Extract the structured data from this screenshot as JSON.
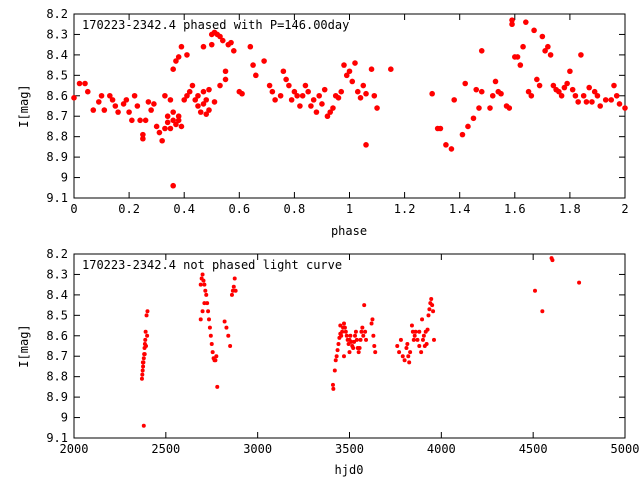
{
  "colors": {
    "series": "#ff0000",
    "axes": "#000000",
    "background": "#ffffff"
  },
  "chart_data": [
    {
      "type": "scatter",
      "title": "170223-2342.4 phased with P=146.00day",
      "xlabel": "phase",
      "ylabel": "I[mag]",
      "xlim": [
        0,
        2
      ],
      "ylim": [
        8.2,
        9.1
      ],
      "y_inverted": true,
      "x_ticks": [
        "0",
        "0.2",
        "0.4",
        "0.6",
        "0.8",
        "1",
        "1.2",
        "1.4",
        "1.6",
        "1.8",
        "2"
      ],
      "y_ticks": [
        "8.2",
        "8.3",
        "8.4",
        "8.5",
        "8.6",
        "8.7",
        "8.8",
        "8.9",
        "9",
        "9.1"
      ],
      "grid": false,
      "marker": "filled-circle",
      "points": [
        [
          0.0,
          8.61
        ],
        [
          0.02,
          8.54
        ],
        [
          0.04,
          8.54
        ],
        [
          0.05,
          8.58
        ],
        [
          0.07,
          8.67
        ],
        [
          0.09,
          8.63
        ],
        [
          0.1,
          8.6
        ],
        [
          0.11,
          8.67
        ],
        [
          0.13,
          8.6
        ],
        [
          0.14,
          8.62
        ],
        [
          0.15,
          8.65
        ],
        [
          0.16,
          8.68
        ],
        [
          0.18,
          8.64
        ],
        [
          0.19,
          8.62
        ],
        [
          0.2,
          8.68
        ],
        [
          0.21,
          8.72
        ],
        [
          0.22,
          8.6
        ],
        [
          0.23,
          8.65
        ],
        [
          0.24,
          8.72
        ],
        [
          0.25,
          8.79
        ],
        [
          0.25,
          8.81
        ],
        [
          0.26,
          8.72
        ],
        [
          0.27,
          8.63
        ],
        [
          0.28,
          8.67
        ],
        [
          0.29,
          8.64
        ],
        [
          0.3,
          8.75
        ],
        [
          0.31,
          8.78
        ],
        [
          0.32,
          8.82
        ],
        [
          0.33,
          8.76
        ],
        [
          0.34,
          8.7
        ],
        [
          0.34,
          8.73
        ],
        [
          0.35,
          8.76
        ],
        [
          0.36,
          8.72
        ],
        [
          0.36,
          8.68
        ],
        [
          0.37,
          8.74
        ],
        [
          0.38,
          8.7
        ],
        [
          0.38,
          8.72
        ],
        [
          0.39,
          8.75
        ],
        [
          0.33,
          8.6
        ],
        [
          0.35,
          8.62
        ],
        [
          0.36,
          9.04
        ],
        [
          0.36,
          8.47
        ],
        [
          0.37,
          8.43
        ],
        [
          0.38,
          8.41
        ],
        [
          0.39,
          8.36
        ],
        [
          0.4,
          8.62
        ],
        [
          0.41,
          8.6
        ],
        [
          0.41,
          8.4
        ],
        [
          0.42,
          8.58
        ],
        [
          0.43,
          8.55
        ],
        [
          0.44,
          8.62
        ],
        [
          0.45,
          8.65
        ],
        [
          0.45,
          8.6
        ],
        [
          0.46,
          8.68
        ],
        [
          0.47,
          8.64
        ],
        [
          0.47,
          8.58
        ],
        [
          0.47,
          8.36
        ],
        [
          0.48,
          8.62
        ],
        [
          0.48,
          8.69
        ],
        [
          0.49,
          8.67
        ],
        [
          0.49,
          8.57
        ],
        [
          0.5,
          8.3
        ],
        [
          0.5,
          8.35
        ],
        [
          0.51,
          8.63
        ],
        [
          0.51,
          8.29
        ],
        [
          0.52,
          8.3
        ],
        [
          0.53,
          8.31
        ],
        [
          0.53,
          8.55
        ],
        [
          0.54,
          8.33
        ],
        [
          0.55,
          8.52
        ],
        [
          0.55,
          8.48
        ],
        [
          0.56,
          8.35
        ],
        [
          0.57,
          8.34
        ],
        [
          0.58,
          8.38
        ],
        [
          0.6,
          8.58
        ],
        [
          0.61,
          8.59
        ],
        [
          0.64,
          8.36
        ],
        [
          0.65,
          8.45
        ],
        [
          0.66,
          8.5
        ],
        [
          0.69,
          8.43
        ],
        [
          0.71,
          8.55
        ],
        [
          0.72,
          8.58
        ],
        [
          0.73,
          8.62
        ],
        [
          0.75,
          8.6
        ],
        [
          0.76,
          8.48
        ],
        [
          0.77,
          8.52
        ],
        [
          0.78,
          8.55
        ],
        [
          0.79,
          8.62
        ],
        [
          0.8,
          8.58
        ],
        [
          0.81,
          8.6
        ],
        [
          0.82,
          8.65
        ],
        [
          0.83,
          8.6
        ],
        [
          0.84,
          8.55
        ],
        [
          0.85,
          8.58
        ],
        [
          0.86,
          8.65
        ],
        [
          0.87,
          8.62
        ],
        [
          0.88,
          8.68
        ],
        [
          0.89,
          8.6
        ],
        [
          0.9,
          8.64
        ],
        [
          0.91,
          8.57
        ],
        [
          0.92,
          8.7
        ],
        [
          0.93,
          8.68
        ],
        [
          0.94,
          8.66
        ],
        [
          0.95,
          8.6
        ],
        [
          0.96,
          8.61
        ],
        [
          0.97,
          8.58
        ],
        [
          0.98,
          8.45
        ],
        [
          0.99,
          8.5
        ],
        [
          1.0,
          8.48
        ],
        [
          1.01,
          8.53
        ],
        [
          1.02,
          8.44
        ],
        [
          1.03,
          8.58
        ],
        [
          1.04,
          8.61
        ],
        [
          1.05,
          8.55
        ],
        [
          1.06,
          8.59
        ],
        [
          1.06,
          8.84
        ],
        [
          1.08,
          8.47
        ],
        [
          1.09,
          8.6
        ],
        [
          1.1,
          8.66
        ],
        [
          1.15,
          8.47
        ],
        [
          1.3,
          8.59
        ],
        [
          1.32,
          8.76
        ],
        [
          1.33,
          8.76
        ],
        [
          1.35,
          8.84
        ],
        [
          1.37,
          8.86
        ],
        [
          1.38,
          8.62
        ],
        [
          1.41,
          8.79
        ],
        [
          1.42,
          8.54
        ],
        [
          1.43,
          8.75
        ],
        [
          1.45,
          8.71
        ],
        [
          1.46,
          8.57
        ],
        [
          1.47,
          8.66
        ],
        [
          1.48,
          8.58
        ],
        [
          1.48,
          8.38
        ],
        [
          1.51,
          8.66
        ],
        [
          1.52,
          8.6
        ],
        [
          1.53,
          8.53
        ],
        [
          1.54,
          8.58
        ],
        [
          1.55,
          8.59
        ],
        [
          1.57,
          8.65
        ],
        [
          1.58,
          8.66
        ],
        [
          1.59,
          8.23
        ],
        [
          1.59,
          8.25
        ],
        [
          1.6,
          8.41
        ],
        [
          1.61,
          8.41
        ],
        [
          1.62,
          8.45
        ],
        [
          1.63,
          8.36
        ],
        [
          1.64,
          8.24
        ],
        [
          1.65,
          8.58
        ],
        [
          1.66,
          8.6
        ],
        [
          1.67,
          8.28
        ],
        [
          1.68,
          8.52
        ],
        [
          1.69,
          8.55
        ],
        [
          1.7,
          8.31
        ],
        [
          1.71,
          8.38
        ],
        [
          1.72,
          8.36
        ],
        [
          1.73,
          8.4
        ],
        [
          1.74,
          8.55
        ],
        [
          1.75,
          8.57
        ],
        [
          1.76,
          8.58
        ],
        [
          1.77,
          8.6
        ],
        [
          1.78,
          8.56
        ],
        [
          1.79,
          8.54
        ],
        [
          1.8,
          8.48
        ],
        [
          1.81,
          8.57
        ],
        [
          1.82,
          8.6
        ],
        [
          1.83,
          8.63
        ],
        [
          1.84,
          8.4
        ],
        [
          1.85,
          8.6
        ],
        [
          1.86,
          8.63
        ],
        [
          1.87,
          8.56
        ],
        [
          1.88,
          8.63
        ],
        [
          1.89,
          8.58
        ],
        [
          1.9,
          8.6
        ],
        [
          1.91,
          8.65
        ],
        [
          1.93,
          8.62
        ],
        [
          1.95,
          8.62
        ],
        [
          1.96,
          8.55
        ],
        [
          1.97,
          8.6
        ],
        [
          1.98,
          8.64
        ],
        [
          2.0,
          8.66
        ]
      ]
    },
    {
      "type": "scatter",
      "title": "170223-2342.4 not phased light curve",
      "xlabel": "hjd0",
      "ylabel": "I[mag]",
      "xlim": [
        2000,
        5000
      ],
      "ylim": [
        8.2,
        9.1
      ],
      "y_inverted": true,
      "x_ticks": [
        "2000",
        "2500",
        "3000",
        "3500",
        "4000",
        "4500",
        "5000"
      ],
      "y_ticks": [
        "8.2",
        "8.3",
        "8.4",
        "8.5",
        "8.6",
        "8.7",
        "8.8",
        "8.9",
        "9",
        "9.1"
      ],
      "grid": false,
      "marker": "filled-circle",
      "points": [
        [
          2370,
          8.81
        ],
        [
          2372,
          8.79
        ],
        [
          2374,
          8.77
        ],
        [
          2376,
          8.75
        ],
        [
          2378,
          8.73
        ],
        [
          2380,
          8.71
        ],
        [
          2382,
          8.69
        ],
        [
          2384,
          8.66
        ],
        [
          2386,
          8.64
        ],
        [
          2388,
          8.62
        ],
        [
          2390,
          8.58
        ],
        [
          2395,
          8.5
        ],
        [
          2400,
          8.48
        ],
        [
          2375,
          8.73
        ],
        [
          2380,
          9.04
        ],
        [
          2385,
          8.69
        ],
        [
          2392,
          8.65
        ],
        [
          2398,
          8.6
        ],
        [
          2690,
          8.35
        ],
        [
          2695,
          8.32
        ],
        [
          2700,
          8.3
        ],
        [
          2705,
          8.33
        ],
        [
          2710,
          8.35
        ],
        [
          2715,
          8.38
        ],
        [
          2720,
          8.4
        ],
        [
          2725,
          8.44
        ],
        [
          2730,
          8.48
        ],
        [
          2735,
          8.52
        ],
        [
          2740,
          8.56
        ],
        [
          2745,
          8.6
        ],
        [
          2750,
          8.64
        ],
        [
          2755,
          8.68
        ],
        [
          2760,
          8.71
        ],
        [
          2765,
          8.72
        ],
        [
          2770,
          8.72
        ],
        [
          2775,
          8.7
        ],
        [
          2780,
          8.85
        ],
        [
          2690,
          8.52
        ],
        [
          2700,
          8.48
        ],
        [
          2710,
          8.44
        ],
        [
          2820,
          8.53
        ],
        [
          2830,
          8.56
        ],
        [
          2840,
          8.6
        ],
        [
          2850,
          8.65
        ],
        [
          2860,
          8.4
        ],
        [
          2865,
          8.38
        ],
        [
          2870,
          8.36
        ],
        [
          2875,
          8.32
        ],
        [
          2880,
          8.38
        ],
        [
          3410,
          8.84
        ],
        [
          3412,
          8.86
        ],
        [
          3420,
          8.77
        ],
        [
          3425,
          8.72
        ],
        [
          3430,
          8.7
        ],
        [
          3435,
          8.67
        ],
        [
          3440,
          8.64
        ],
        [
          3445,
          8.61
        ],
        [
          3450,
          8.59
        ],
        [
          3455,
          8.6
        ],
        [
          3460,
          8.58
        ],
        [
          3465,
          8.56
        ],
        [
          3470,
          8.54
        ],
        [
          3475,
          8.56
        ],
        [
          3480,
          8.58
        ],
        [
          3485,
          8.6
        ],
        [
          3490,
          8.62
        ],
        [
          3495,
          8.64
        ],
        [
          3500,
          8.62
        ],
        [
          3505,
          8.6
        ],
        [
          3510,
          8.63
        ],
        [
          3515,
          8.65
        ],
        [
          3520,
          8.66
        ],
        [
          3525,
          8.63
        ],
        [
          3530,
          8.6
        ],
        [
          3535,
          8.58
        ],
        [
          3540,
          8.62
        ],
        [
          3545,
          8.66
        ],
        [
          3550,
          8.68
        ],
        [
          3555,
          8.66
        ],
        [
          3560,
          8.62
        ],
        [
          3565,
          8.58
        ],
        [
          3570,
          8.56
        ],
        [
          3575,
          8.6
        ],
        [
          3580,
          8.45
        ],
        [
          3585,
          8.58
        ],
        [
          3590,
          8.62
        ],
        [
          3620,
          8.54
        ],
        [
          3625,
          8.52
        ],
        [
          3630,
          8.6
        ],
        [
          3635,
          8.65
        ],
        [
          3640,
          8.68
        ],
        [
          3450,
          8.55
        ],
        [
          3470,
          8.7
        ],
        [
          3500,
          8.68
        ],
        [
          3760,
          8.65
        ],
        [
          3770,
          8.68
        ],
        [
          3780,
          8.62
        ],
        [
          3790,
          8.7
        ],
        [
          3800,
          8.72
        ],
        [
          3810,
          8.66
        ],
        [
          3815,
          8.64
        ],
        [
          3820,
          8.7
        ],
        [
          3825,
          8.73
        ],
        [
          3830,
          8.68
        ],
        [
          3840,
          8.55
        ],
        [
          3845,
          8.58
        ],
        [
          3850,
          8.62
        ],
        [
          3855,
          8.6
        ],
        [
          3860,
          8.58
        ],
        [
          3870,
          8.62
        ],
        [
          3880,
          8.65
        ],
        [
          3890,
          8.68
        ],
        [
          3900,
          8.62
        ],
        [
          3905,
          8.6
        ],
        [
          3910,
          8.65
        ],
        [
          3915,
          8.58
        ],
        [
          3920,
          8.64
        ],
        [
          3925,
          8.57
        ],
        [
          3930,
          8.5
        ],
        [
          3935,
          8.47
        ],
        [
          3940,
          8.44
        ],
        [
          3945,
          8.42
        ],
        [
          3950,
          8.45
        ],
        [
          3955,
          8.48
        ],
        [
          3960,
          8.62
        ],
        [
          3880,
          8.58
        ],
        [
          3895,
          8.52
        ],
        [
          4510,
          8.38
        ],
        [
          4550,
          8.48
        ],
        [
          4600,
          8.22
        ],
        [
          4605,
          8.23
        ],
        [
          4750,
          8.34
        ]
      ]
    }
  ]
}
